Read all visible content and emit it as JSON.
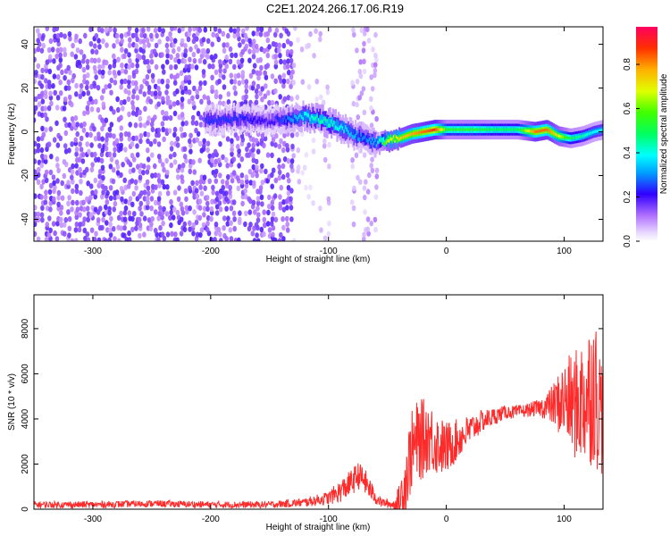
{
  "title": "C2E1.2024.266.17.06.R19",
  "chart_data": [
    {
      "type": "heatmap",
      "xlabel": "Height of straight line (km)",
      "ylabel": "Frequency (Hz)",
      "xlim": [
        -350,
        133
      ],
      "ylim": [
        -50,
        48
      ],
      "xticks": [
        -300,
        -200,
        -100,
        0,
        100
      ],
      "yticks": [
        -40,
        -20,
        0,
        20,
        40
      ],
      "colorbar": {
        "label": "Normalized spectral amplitude",
        "range": [
          0,
          0.97
        ],
        "ticks": [
          0.0,
          0.2,
          0.4,
          0.6,
          0.8
        ]
      },
      "regions": [
        {
          "x_range": [
            -350,
            -130
          ],
          "description": "dense noise, low amplitude, full frequency band"
        },
        {
          "x_range": [
            -130,
            -100
          ],
          "description": "sparse light noise"
        },
        {
          "x_range": [
            -100,
            -60
          ],
          "description": "narrow column of light noise"
        },
        {
          "x_range": [
            -60,
            133
          ],
          "description": "strong narrow band near 0 Hz"
        }
      ],
      "ridge": {
        "x": [
          -205,
          -180,
          -150,
          -120,
          -110,
          -100,
          -90,
          -80,
          -70,
          -60,
          -50,
          -40,
          -30,
          -20,
          -10,
          0,
          20,
          40,
          60,
          75,
          85,
          95,
          105,
          115,
          125,
          133
        ],
        "freq": [
          5,
          6,
          5,
          7,
          6,
          4,
          2,
          -1,
          -3,
          -5,
          -4,
          -3,
          -1,
          0,
          1,
          1,
          1,
          1,
          1,
          0,
          1,
          -2,
          -3,
          -2,
          0,
          1
        ],
        "amplitude": [
          0.25,
          0.25,
          0.2,
          0.4,
          0.45,
          0.45,
          0.4,
          0.35,
          0.3,
          0.35,
          0.7,
          0.75,
          0.8,
          0.85,
          0.9,
          0.55,
          0.55,
          0.5,
          0.5,
          0.85,
          0.85,
          0.7,
          0.5,
          0.45,
          0.4,
          0.4
        ]
      }
    },
    {
      "type": "line",
      "xlabel": "Height of straight line (km)",
      "ylabel": "SNR (10 * v/v)",
      "xlim": [
        -350,
        133
      ],
      "ylim": [
        0,
        9500
      ],
      "xticks": [
        -300,
        -200,
        -100,
        0,
        100
      ],
      "yticks": [
        0,
        2000,
        4000,
        6000,
        8000
      ],
      "series": [
        {
          "color": "#ff2a2a",
          "x": [
            -350,
            -300,
            -250,
            -200,
            -150,
            -120,
            -100,
            -90,
            -80,
            -75,
            -70,
            -65,
            -60,
            -55,
            -50,
            -45,
            -40,
            -35,
            -30,
            -25,
            -20,
            -15,
            -10,
            -5,
            0,
            10,
            20,
            30,
            40,
            50,
            60,
            70,
            80,
            90,
            100,
            110,
            120,
            125,
            130,
            133
          ],
          "y": [
            200,
            200,
            250,
            200,
            200,
            300,
            500,
            800,
            1200,
            1500,
            1300,
            900,
            500,
            300,
            250,
            200,
            300,
            1200,
            2500,
            3000,
            3100,
            3300,
            3000,
            2800,
            2700,
            3100,
            3500,
            3900,
            4100,
            4300,
            4300,
            4400,
            4500,
            4600,
            4800,
            4600,
            5000,
            5500,
            4500,
            4200
          ],
          "spread": [
            150,
            150,
            150,
            150,
            150,
            200,
            300,
            500,
            600,
            600,
            600,
            500,
            300,
            200,
            200,
            200,
            800,
            1500,
            1800,
            1800,
            1800,
            1600,
            1500,
            1300,
            1200,
            900,
            700,
            500,
            400,
            300,
            300,
            300,
            400,
            900,
            1800,
            2500,
            3200,
            3500,
            3000,
            2800
          ]
        }
      ]
    }
  ]
}
